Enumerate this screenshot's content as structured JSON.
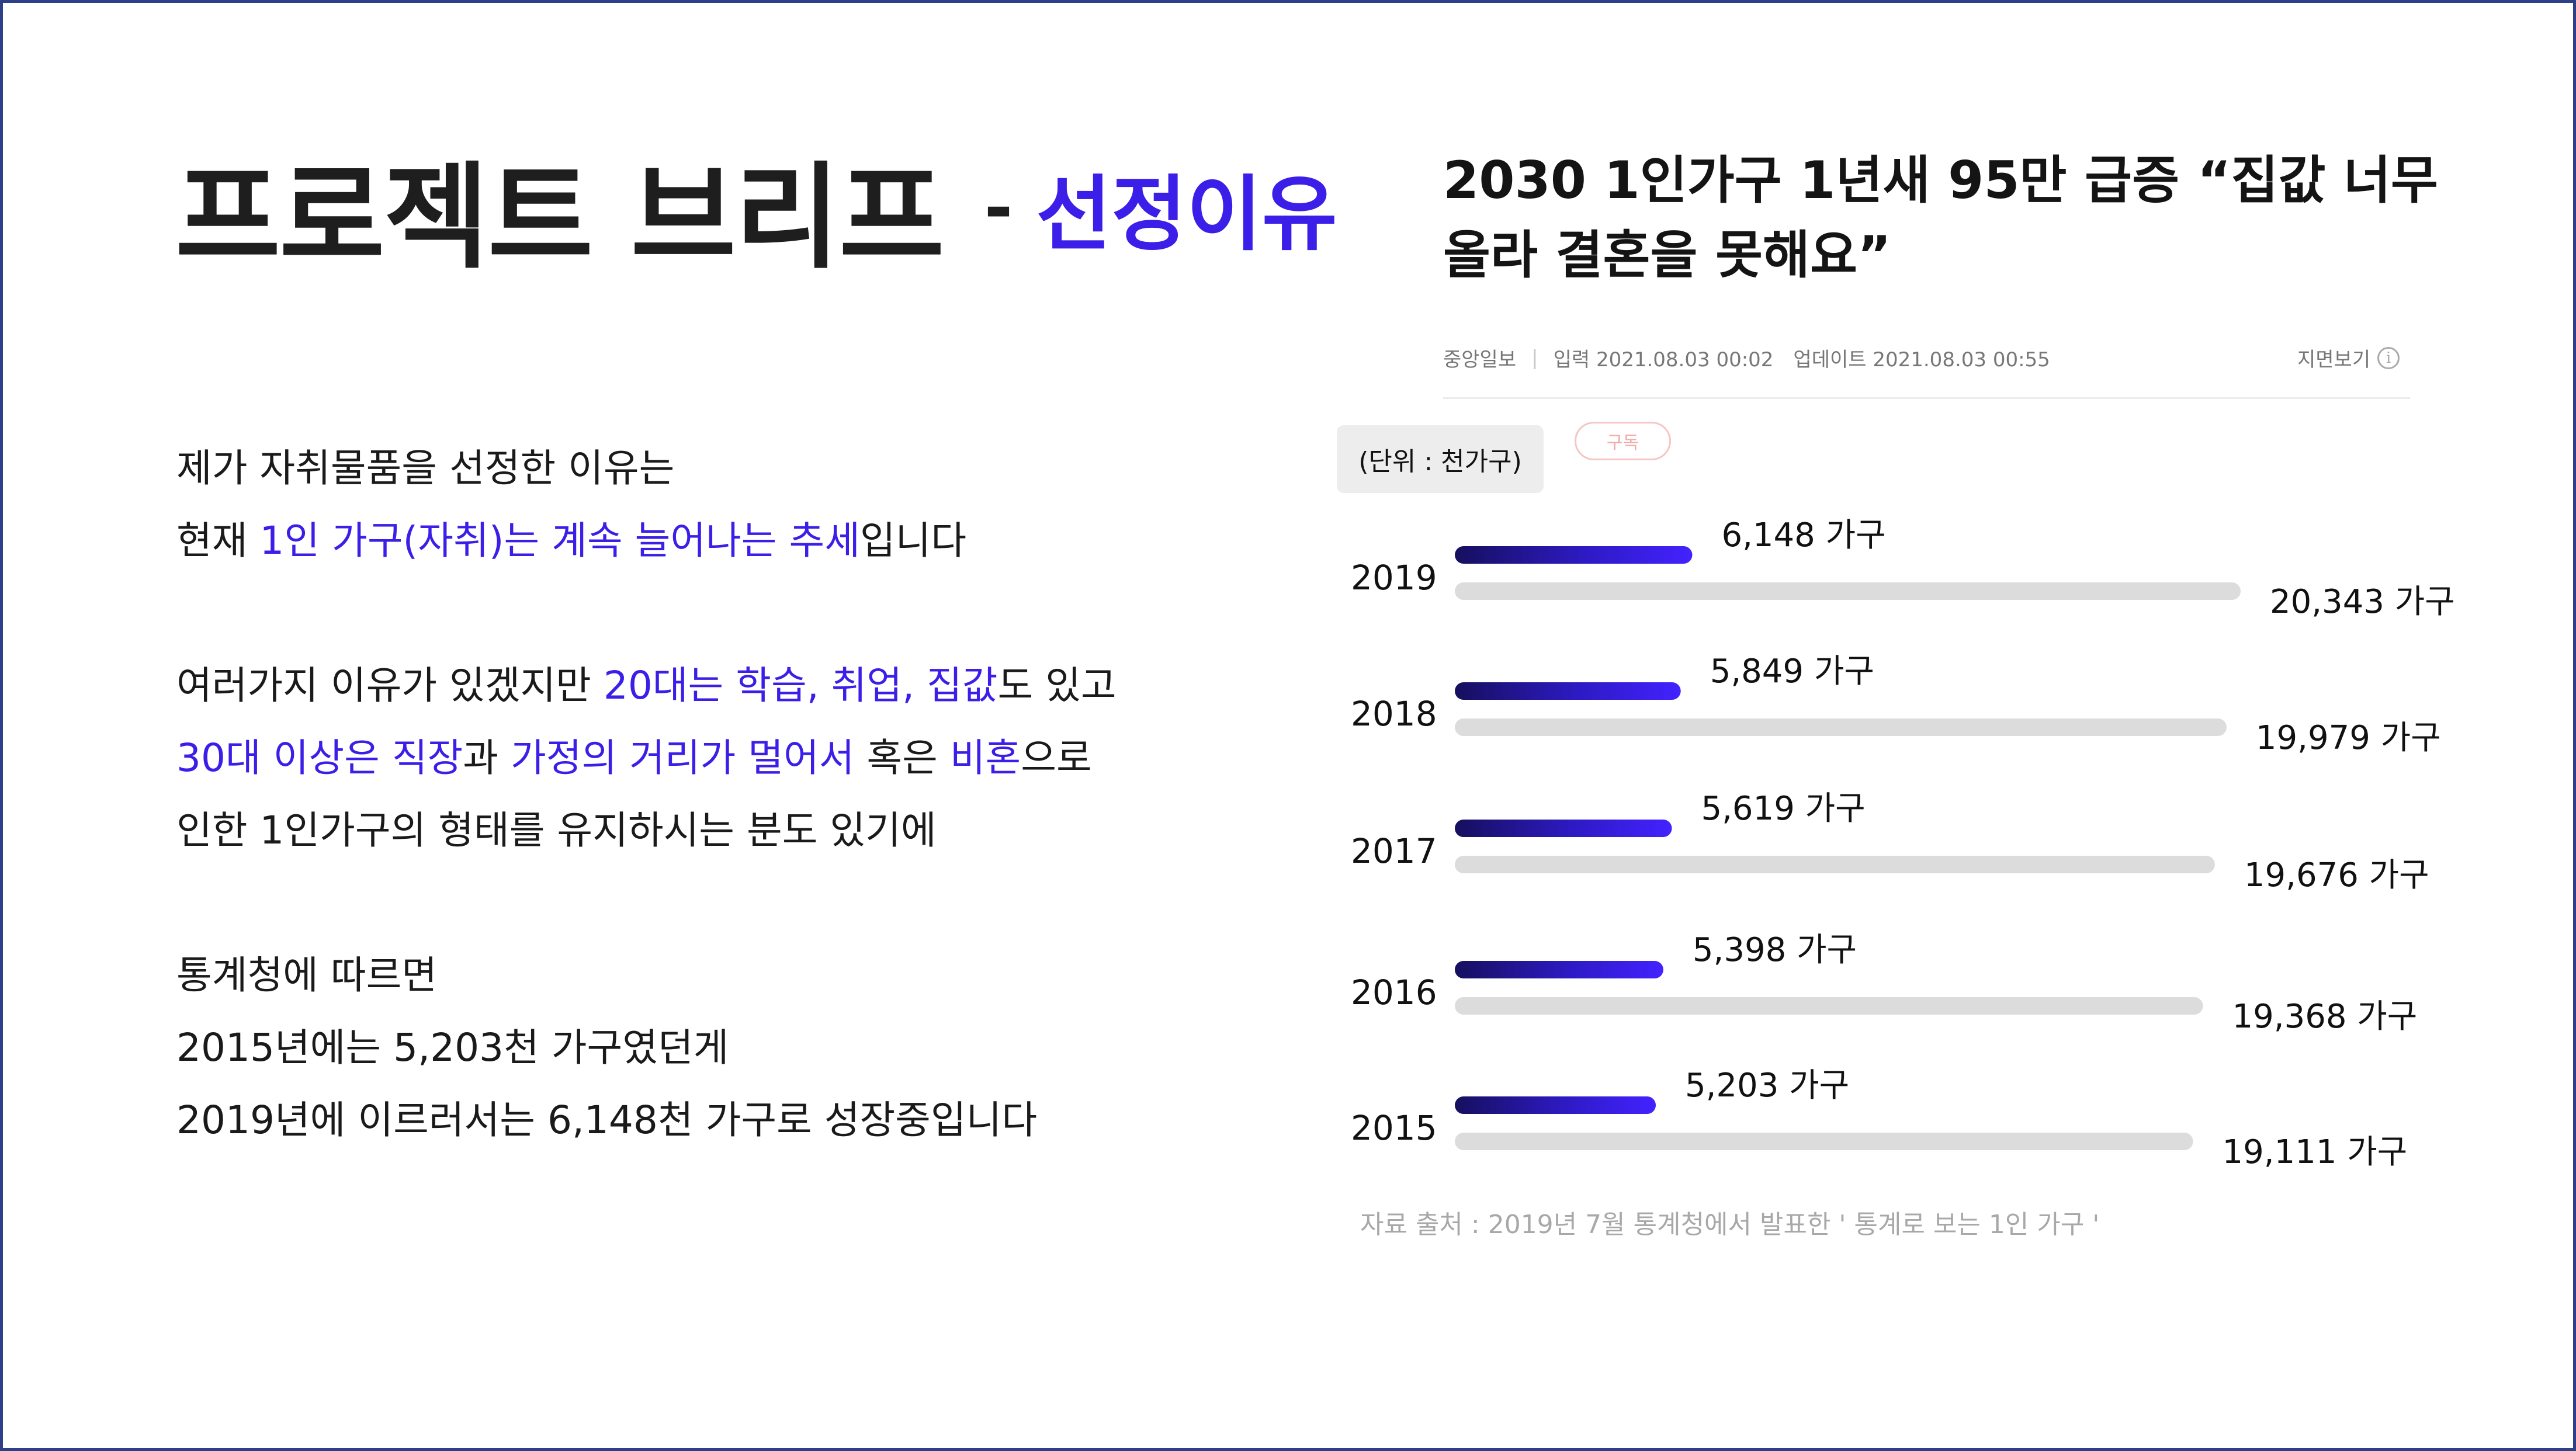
{
  "slide": {
    "title_main": "프로젝트 브리프",
    "title_dash": "-",
    "title_sub": "선정이유"
  },
  "body": {
    "p1_line1": "제가 자취물품을 선정한 이유는",
    "p1_line2": [
      {
        "text": "현재 ",
        "hl": false
      },
      {
        "text": "1인 가구(자취)는 계속 늘어나는 추세",
        "hl": true
      },
      {
        "text": "입니다",
        "hl": false
      }
    ],
    "p2_line1": [
      {
        "text": "여러가지 이유가 있겠지만 ",
        "hl": false
      },
      {
        "text": "20대는 학습, 취업, 집값",
        "hl": true
      },
      {
        "text": "도 있고",
        "hl": false
      }
    ],
    "p2_line2": [
      {
        "text": "30대 이상은 직장",
        "hl": true
      },
      {
        "text": "과 ",
        "hl": false
      },
      {
        "text": "가정의 거리가 멀어서",
        "hl": true
      },
      {
        "text": " 혹은 ",
        "hl": false
      },
      {
        "text": "비혼",
        "hl": true
      },
      {
        "text": "으로",
        "hl": false
      }
    ],
    "p2_line3": "인한 1인가구의 형태를 유지하시는 분도 있기에",
    "p3_line1": "통계청에 따르면",
    "p3_line2": "2015년에는 5,203천 가구였던게",
    "p3_line3": "2019년에 이르러서는 6,148천 가구로 성장중입니다"
  },
  "article": {
    "headline_line1": "2030 1인가구 1년새 95만 급증 “집값 너무",
    "headline_line2": "올라 결혼을 못해요”",
    "publisher": "중앙일보",
    "separator": "|",
    "input_time": "입력 2021.08.03 00:02",
    "update_time": "업데이트 2021.08.03 00:55",
    "paper_view": "지면보기",
    "info_icon": "i",
    "subscribe": "구독",
    "unit": "(단위 : 천가구)",
    "source": "자료 출처 : 2019년 7월 통계청에서 발표한  ' 통계로 보는 1인 가구 '"
  },
  "chart_data": {
    "type": "bar",
    "orientation": "horizontal",
    "unit": "(단위 : 천가구)",
    "categories": [
      "2019",
      "2018",
      "2017",
      "2016",
      "2015"
    ],
    "series": [
      {
        "values": [
          6148,
          5849,
          5619,
          5398,
          5203
        ],
        "labels": [
          "6,148 가구",
          "5,849 가구",
          "5,619 가구",
          "5,398 가구",
          "5,203 가구"
        ],
        "color": "#3b1fe8"
      },
      {
        "values": [
          20343,
          19979,
          19676,
          19368,
          19111
        ],
        "labels": [
          "20,343 가구",
          "19,979 가구",
          "19,676 가구",
          "19,368 가구",
          "19,111 가구"
        ],
        "color": "#dcdcdc"
      }
    ],
    "grid": false,
    "legend": "none"
  }
}
